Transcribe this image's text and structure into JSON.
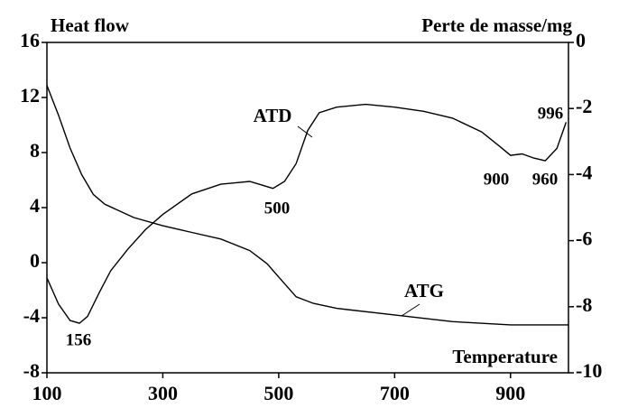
{
  "chart_data": {
    "type": "line",
    "y_label": "Heat flow",
    "y2_label": "Perte de masse/mg",
    "x_label": "Temperature",
    "xlim": [
      100,
      1000
    ],
    "xticks": [
      100,
      300,
      500,
      700,
      900
    ],
    "ylim": [
      -8,
      16
    ],
    "yticks": [
      -8,
      -4,
      0,
      4,
      8,
      12,
      16
    ],
    "y2lim": [
      -10,
      0
    ],
    "y2ticks": [
      -10,
      -8,
      -6,
      -4,
      -2,
      0
    ],
    "grid": false,
    "series": [
      {
        "name": "ATD",
        "color": "#000000",
        "x": [
          100,
          120,
          140,
          156,
          170,
          190,
          210,
          240,
          270,
          300,
          350,
          400,
          450,
          490,
          510,
          530,
          550,
          570,
          600,
          650,
          700,
          750,
          800,
          850,
          880,
          900,
          920,
          940,
          960,
          980,
          996
        ],
        "values": [
          -1.1,
          -3.0,
          -4.2,
          -4.4,
          -3.9,
          -2.2,
          -0.6,
          1.0,
          2.4,
          3.5,
          5.0,
          5.7,
          5.9,
          5.4,
          5.9,
          7.2,
          9.6,
          10.9,
          11.3,
          11.5,
          11.3,
          11.0,
          10.5,
          9.5,
          8.5,
          7.8,
          7.9,
          7.6,
          7.4,
          8.3,
          10.2
        ]
      },
      {
        "name": "ATG",
        "color": "#000000",
        "axis": "y2",
        "x": [
          100,
          120,
          140,
          160,
          180,
          200,
          250,
          300,
          350,
          400,
          450,
          480,
          500,
          530,
          560,
          600,
          700,
          800,
          900,
          1000
        ],
        "values": [
          -1.3,
          -2.2,
          -3.2,
          -4.0,
          -4.6,
          -4.9,
          -5.3,
          -5.55,
          -5.75,
          -5.95,
          -6.3,
          -6.7,
          -7.1,
          -7.7,
          -7.9,
          -8.05,
          -8.25,
          -8.45,
          -8.55,
          -8.55
        ]
      }
    ],
    "annotations": [
      "156",
      "500",
      "900",
      "960",
      "996"
    ]
  }
}
